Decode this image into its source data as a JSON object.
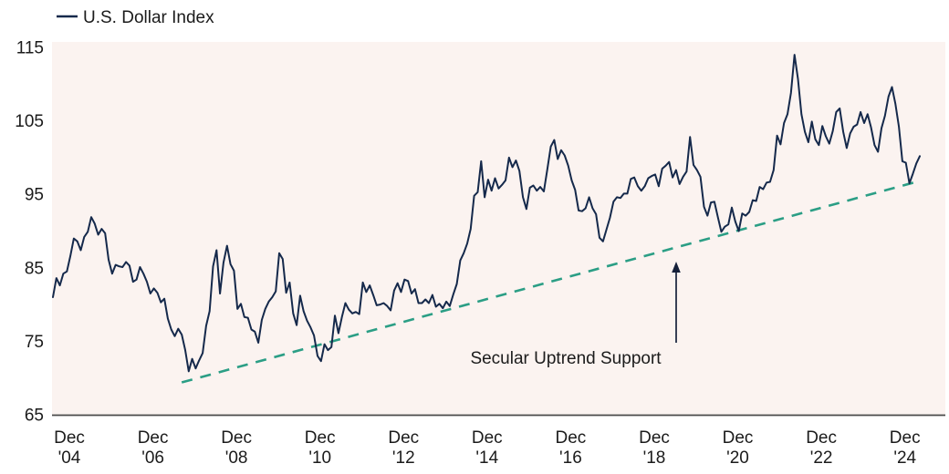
{
  "legend": {
    "label": "U.S. Dollar Index"
  },
  "annotation": {
    "label": "Secular Uptrend Support"
  },
  "chart_data": {
    "type": "line",
    "title": "",
    "xlabel": "",
    "ylabel": "",
    "ylim": [
      65,
      115
    ],
    "y_ticks": [
      115,
      105,
      95,
      85,
      75,
      65
    ],
    "grid": false,
    "legend_position": "top-left",
    "plot_bg": "#fbf3f0",
    "axis_line_color": "#4a4a4a",
    "series": [
      {
        "name": "U.S. Dollar Index",
        "color": "#15294b",
        "start": "2004-12",
        "interval": "monthly",
        "values": [
          81.0,
          83.6,
          82.6,
          84.2,
          84.5,
          86.6,
          89.0,
          88.6,
          87.4,
          89.2,
          89.9,
          91.9,
          91.0,
          89.5,
          90.3,
          89.7,
          86.1,
          84.2,
          85.4,
          85.2,
          85.1,
          85.8,
          85.3,
          83.1,
          83.4,
          85.1,
          84.2,
          83.1,
          81.5,
          82.2,
          81.6,
          80.3,
          80.8,
          78.1,
          76.6,
          75.7,
          76.7,
          75.9,
          73.8,
          70.9,
          72.6,
          71.3,
          72.4,
          73.4,
          77.1,
          79.1,
          85.2,
          87.4,
          81.5,
          85.7,
          88.0,
          85.5,
          84.6,
          79.4,
          80.1,
          78.3,
          78.2,
          76.6,
          76.3,
          74.8,
          77.9,
          79.4,
          80.4,
          81.0,
          81.8,
          87.0,
          86.2,
          81.6,
          83.0,
          78.8,
          77.2,
          81.2,
          79.1,
          77.8,
          76.9,
          75.8,
          73.0,
          72.3,
          74.6,
          73.8,
          74.2,
          78.5,
          76.1,
          78.3,
          80.2,
          79.3,
          78.8,
          79.0,
          78.7,
          83.0,
          81.7,
          82.6,
          81.3,
          79.9,
          80.0,
          80.2,
          79.8,
          79.2,
          81.9,
          82.9,
          81.7,
          83.4,
          83.2,
          81.5,
          82.1,
          80.2,
          80.2,
          80.7,
          80.2,
          81.3,
          79.7,
          80.1,
          79.5,
          80.4,
          79.8,
          81.4,
          82.8,
          86.0,
          87.0,
          88.3,
          90.3,
          94.8,
          95.3,
          99.5,
          94.6,
          97.0,
          95.5,
          97.2,
          95.8,
          96.3,
          96.9,
          100.0,
          98.7,
          99.6,
          98.2,
          94.6,
          93.0,
          95.9,
          96.2,
          95.5,
          96.0,
          95.4,
          98.4,
          101.5,
          102.4,
          99.8,
          101.0,
          100.3,
          98.9,
          96.9,
          95.6,
          92.8,
          92.7,
          93.1,
          94.6,
          93.1,
          92.3,
          89.1,
          88.6,
          90.2,
          91.8,
          94.0,
          94.6,
          94.5,
          95.1,
          95.1,
          97.1,
          97.3,
          96.1,
          95.5,
          96.1,
          97.2,
          97.5,
          97.7,
          96.1,
          98.5,
          98.9,
          99.4,
          97.3,
          98.3,
          96.4,
          97.4,
          98.1,
          102.8,
          99.0,
          98.3,
          97.4,
          93.3,
          92.1,
          93.9,
          94.0,
          91.9,
          89.9,
          90.6,
          90.9,
          93.2,
          91.3,
          90.0,
          92.4,
          92.1,
          92.6,
          94.2,
          94.1,
          96.0,
          95.7,
          96.6,
          96.7,
          98.3,
          103.0,
          101.8,
          104.7,
          105.9,
          108.8,
          114.0,
          110.7,
          105.9,
          103.5,
          102.1,
          104.9,
          102.5,
          101.7,
          104.3,
          102.9,
          101.9,
          103.6,
          106.2,
          106.7,
          103.5,
          101.3,
          103.3,
          104.2,
          104.5,
          106.2,
          104.7,
          105.9,
          104.1,
          101.7,
          100.8,
          104.0,
          105.7,
          108.3,
          109.6,
          107.3,
          104.2,
          99.5,
          99.3,
          96.5,
          97.8,
          99.2,
          100.2
        ]
      }
    ],
    "trendline": {
      "name": "Secular Uptrend Support",
      "style": "dashed",
      "color": "#2b9e85",
      "start": {
        "date": "2008-01",
        "value": 69.4
      },
      "end": {
        "date": "2025-08",
        "value": 96.7
      }
    },
    "x_ticks": [
      {
        "top": "Dec",
        "bottom": "'04",
        "date": "2004-12"
      },
      {
        "top": "Dec",
        "bottom": "'06",
        "date": "2006-12"
      },
      {
        "top": "Dec",
        "bottom": "'08",
        "date": "2008-12"
      },
      {
        "top": "Dec",
        "bottom": "'10",
        "date": "2010-12"
      },
      {
        "top": "Dec",
        "bottom": "'12",
        "date": "2012-12"
      },
      {
        "top": "Dec",
        "bottom": "'14",
        "date": "2014-12"
      },
      {
        "top": "Dec",
        "bottom": "'16",
        "date": "2016-12"
      },
      {
        "top": "Dec",
        "bottom": "'18",
        "date": "2018-12"
      },
      {
        "top": "Dec",
        "bottom": "'20",
        "date": "2020-12"
      },
      {
        "top": "Dec",
        "bottom": "'22",
        "date": "2022-12"
      },
      {
        "top": "Dec",
        "bottom": "'24",
        "date": "2024-12"
      }
    ]
  }
}
